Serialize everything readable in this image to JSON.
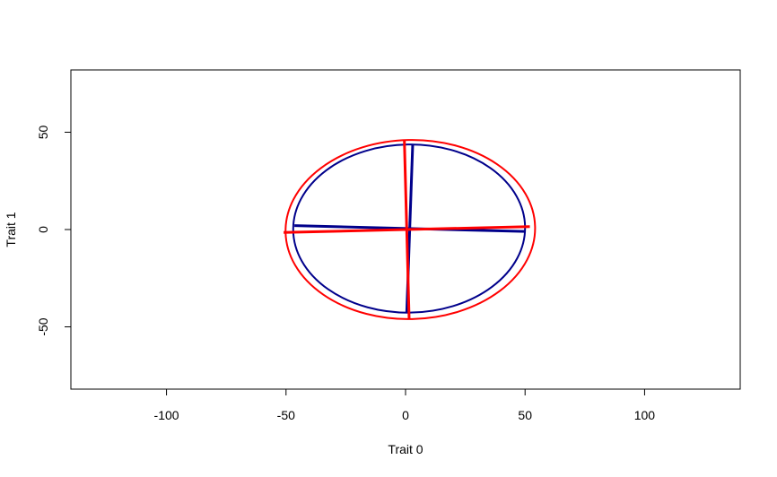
{
  "chart_data": {
    "type": "line",
    "title": "",
    "xlabel": "Trait 0",
    "ylabel": "Trait 1",
    "xlim": [
      -140,
      140
    ],
    "ylim": [
      -82,
      82
    ],
    "xticks": [
      -100,
      -50,
      0,
      50,
      100
    ],
    "xtick_labels": [
      "-100",
      "-50",
      "0",
      "50",
      "100"
    ],
    "yticks": [
      -50,
      0,
      50
    ],
    "ytick_labels": [
      "-50",
      "0",
      "50"
    ],
    "grid": false,
    "legend": "none",
    "series": [
      {
        "color": "#00008b",
        "ellipse": {
          "center": [
            1.5,
            0.5
          ],
          "rx": 48.5,
          "ry": 43.2,
          "rotation_deg": 0.8
        },
        "axes": [
          {
            "x": [
              -46.5,
              50
            ],
            "y": [
              2,
              -1
            ]
          },
          {
            "x": [
              3,
              0.5
            ],
            "y": [
              44,
              -43
            ]
          }
        ]
      },
      {
        "color": "#ff0000",
        "ellipse": {
          "center": [
            2,
            0
          ],
          "rx": 52.2,
          "ry": 46,
          "rotation_deg": 1.3
        },
        "axes": [
          {
            "x": [
              -51,
              52
            ],
            "y": [
              -1.5,
              1.5
            ]
          },
          {
            "x": [
              -0.5,
              1.5
            ],
            "y": [
              46,
              -46
            ]
          }
        ]
      }
    ]
  }
}
